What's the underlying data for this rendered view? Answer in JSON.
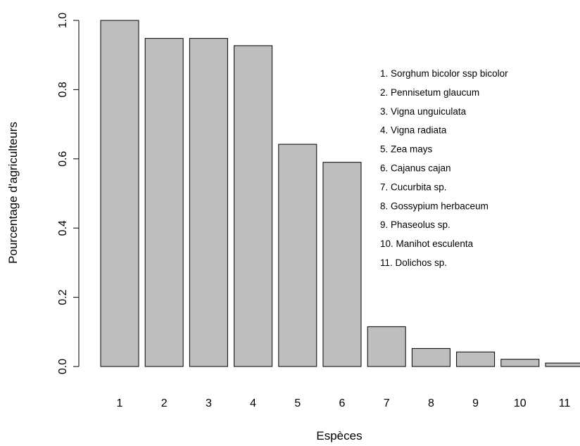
{
  "chart_data": {
    "type": "bar",
    "categories": [
      "1",
      "2",
      "3",
      "4",
      "5",
      "6",
      "7",
      "8",
      "9",
      "10",
      "11"
    ],
    "values": [
      1.0,
      0.948,
      0.948,
      0.927,
      0.642,
      0.59,
      0.115,
      0.052,
      0.042,
      0.021,
      0.01
    ],
    "xlabel": "Espèces",
    "ylabel": "Pourcentage d'agriculteurs",
    "ylim": [
      0,
      1
    ],
    "yticks": [
      "0.0",
      "0.2",
      "0.4",
      "0.6",
      "0.8",
      "1.0"
    ],
    "grid": false,
    "bar_color": "#bebebe",
    "legend_placement": "top-right",
    "legend": [
      "1. Sorghum bicolor ssp bicolor",
      "2. Pennisetum glaucum",
      "3. Vigna unguiculata",
      "4. Vigna radiata",
      "5. Zea mays",
      "6. Cajanus cajan",
      "7. Cucurbita sp.",
      "8. Gossypium herbaceum",
      "9. Phaseolus sp.",
      "10. Manihot esculenta",
      "11. Dolichos sp."
    ]
  }
}
